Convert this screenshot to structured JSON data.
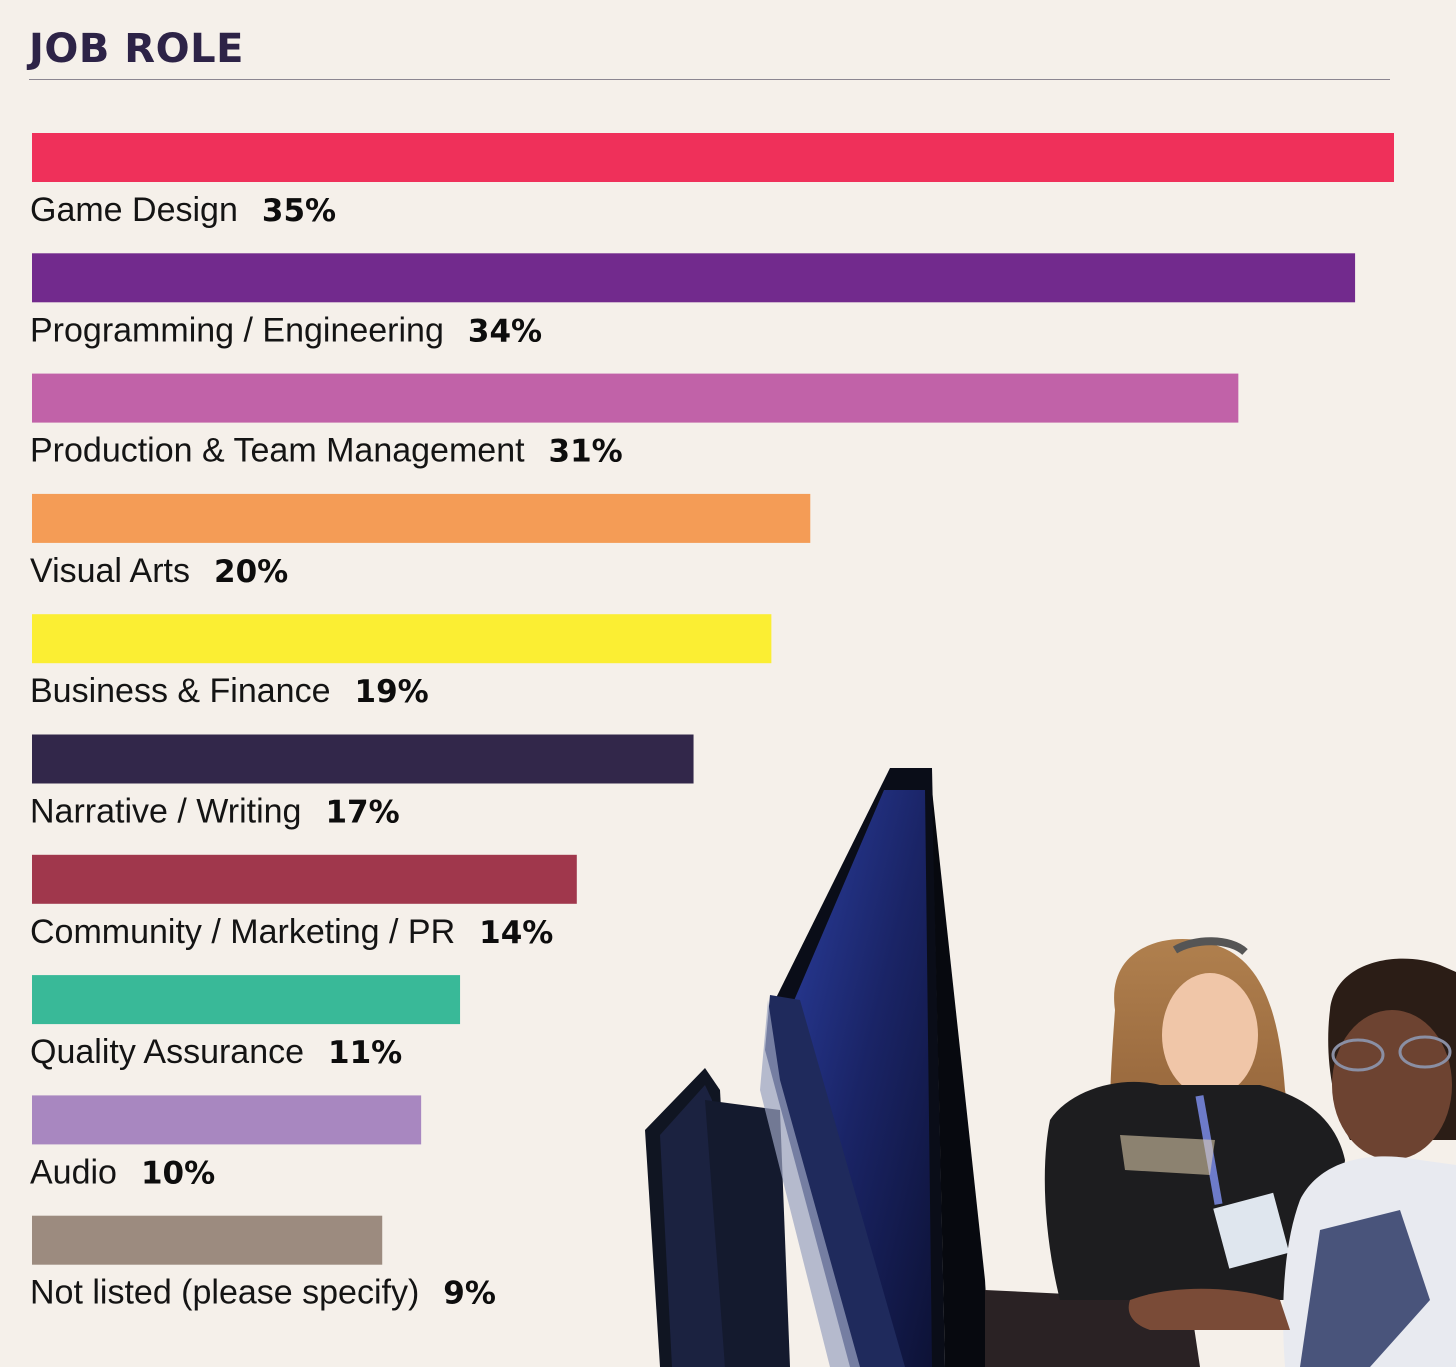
{
  "page": {
    "background": "#f5f0ea"
  },
  "chart_data": {
    "type": "bar",
    "orientation": "horizontal",
    "title": "JOB ROLE",
    "value_suffix": "%",
    "categories": [
      "Game Design",
      "Programming / Engineering",
      "Production & Team Management",
      "Visual Arts",
      "Business & Finance",
      "Narrative / Writing",
      "Community / Marketing / PR",
      "Quality Assurance",
      "Audio",
      "Not listed (please specify)"
    ],
    "values": [
      35,
      34,
      31,
      20,
      19,
      17,
      14,
      11,
      10,
      9
    ],
    "colors": [
      "#ef305a",
      "#722a8d",
      "#c162a8",
      "#f49c56",
      "#fbee33",
      "#32274a",
      "#a0374c",
      "#39b998",
      "#a887c0",
      "#9c8b7f"
    ],
    "xlim": [
      0,
      35
    ],
    "grid": false,
    "legend": "none"
  },
  "photo": {
    "description_icon": "people-at-computer-photo"
  }
}
